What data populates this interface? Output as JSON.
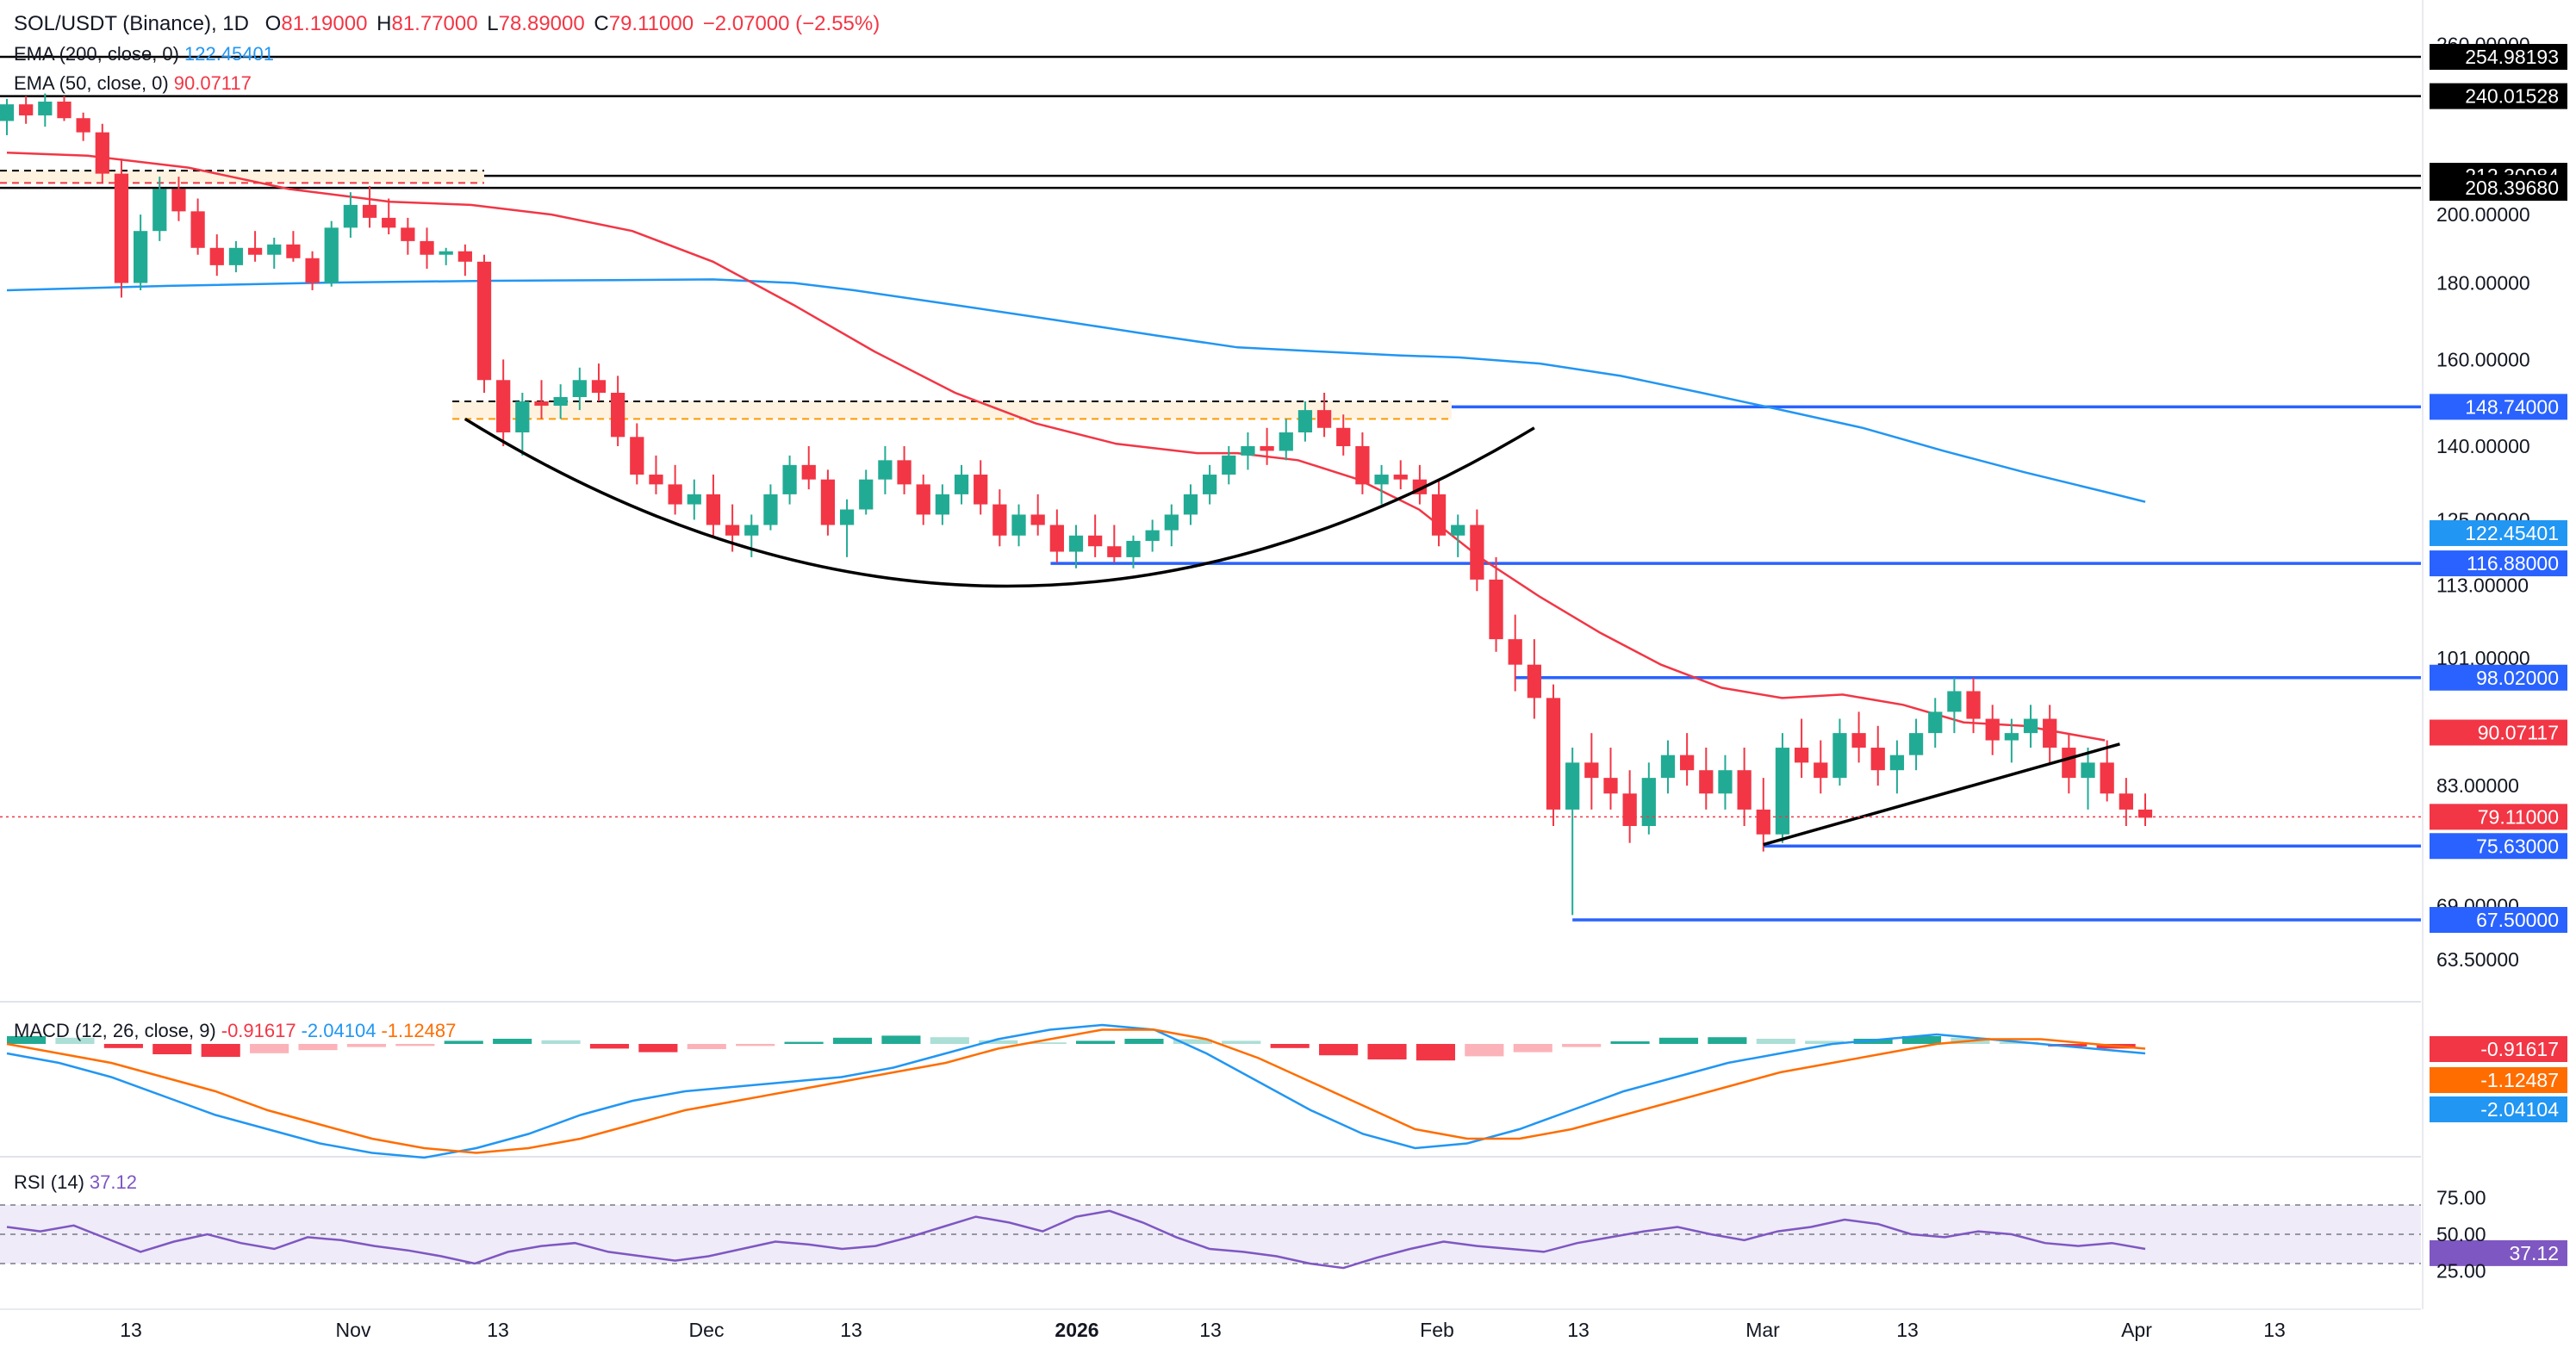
{
  "header": {
    "symbol": "SOL/USDT (Binance), 1D",
    "open_label": "O",
    "open": "81.19000",
    "high_label": "H",
    "high": "81.77000",
    "low_label": "L",
    "low": "78.89000",
    "close_label": "C",
    "close": "79.11000",
    "change": "−2.07000 (−2.55%)"
  },
  "legend": {
    "ema200_label": "EMA (200, close, 0)",
    "ema200_value": "122.45401",
    "ema50_label": "EMA (50, close, 0)",
    "ema50_value": "90.07117",
    "macd_label": "MACD (12, 26, close, 9)",
    "macd_hist": "-0.91617",
    "macd_macd": "-2.04104",
    "macd_signal": "-1.12487",
    "rsi_label": "RSI (14)",
    "rsi_value": "37.12"
  },
  "colors": {
    "up": "#22ab94",
    "down": "#f23645",
    "ema200": "#2196f3",
    "ema50": "#f23645",
    "level": "#2962ff",
    "black_level": "#000000",
    "orange": "#ff9800",
    "hist_pos_strong": "#22ab94",
    "hist_pos_weak": "#acdfd6",
    "hist_neg_strong": "#f23645",
    "hist_neg_weak": "#fbb3b9",
    "rsi_line": "#7e57c2",
    "rsi_band": "#7e57c2"
  },
  "chart_data": {
    "type": "candlestick",
    "price_axis": {
      "ticks": [
        "260.00000",
        "200.00000",
        "180.00000",
        "160.00000",
        "140.00000",
        "125.00000",
        "113.00000",
        "101.00000",
        "83.00000",
        "69.00000",
        "63.50000"
      ],
      "scale": "log"
    },
    "x_axis": {
      "ticks": [
        "13",
        "Nov",
        "13",
        "Dec",
        "13",
        "2026",
        "13",
        "Feb",
        "13",
        "Mar",
        "13",
        "Apr",
        "13"
      ]
    },
    "horizontal_levels": [
      {
        "value": 254.98193,
        "label": "254.98193",
        "color": "black"
      },
      {
        "value": 240.01528,
        "label": "240.01528",
        "color": "black"
      },
      {
        "value": 212.30984,
        "label": "212.30984",
        "color": "black"
      },
      {
        "value": 208.3968,
        "label": "208.39680",
        "color": "black"
      },
      {
        "value": 148.74,
        "label": "148.74000",
        "color": "blue"
      },
      {
        "value": 116.88,
        "label": "116.88000",
        "color": "blue"
      },
      {
        "value": 98.02,
        "label": "98.02000",
        "color": "blue"
      },
      {
        "value": 75.63,
        "label": "75.63000",
        "color": "blue"
      },
      {
        "value": 67.5,
        "label": "67.50000",
        "color": "blue"
      }
    ],
    "price_badges": [
      {
        "value": 122.45401,
        "label": "122.45401",
        "color": "ema200"
      },
      {
        "value": 90.07117,
        "label": "90.07117",
        "color": "ema50"
      },
      {
        "value": 79.11,
        "label": "79.11000",
        "color": "down"
      }
    ],
    "ema200": [
      [
        0,
        178
      ],
      [
        40,
        179.2
      ],
      [
        80,
        180.1
      ],
      [
        120,
        180.6
      ],
      [
        150,
        180.8
      ],
      [
        175,
        181
      ],
      [
        195,
        180
      ],
      [
        210,
        178
      ],
      [
        235,
        174
      ],
      [
        260,
        170
      ],
      [
        285,
        166
      ],
      [
        305,
        163
      ],
      [
        325,
        162
      ],
      [
        345,
        161
      ],
      [
        360,
        160.5
      ],
      [
        380,
        159
      ],
      [
        400,
        156
      ],
      [
        420,
        152
      ],
      [
        440,
        148
      ],
      [
        460,
        144
      ],
      [
        480,
        139
      ],
      [
        500,
        134.5
      ],
      [
        520,
        130.5
      ],
      [
        530,
        128.5
      ]
    ],
    "ema50": [
      [
        0,
        220
      ],
      [
        20,
        219
      ],
      [
        45,
        215
      ],
      [
        70,
        208
      ],
      [
        95,
        204
      ],
      [
        115,
        203
      ],
      [
        135,
        200
      ],
      [
        155,
        195
      ],
      [
        175,
        186
      ],
      [
        195,
        174
      ],
      [
        215,
        162
      ],
      [
        235,
        152
      ],
      [
        255,
        145
      ],
      [
        275,
        140.5
      ],
      [
        295,
        138.5
      ],
      [
        305,
        138.5
      ],
      [
        320,
        137
      ],
      [
        335,
        133
      ],
      [
        350,
        127
      ],
      [
        365,
        118
      ],
      [
        380,
        111
      ],
      [
        395,
        105
      ],
      [
        410,
        100
      ],
      [
        425,
        96.5
      ],
      [
        440,
        95
      ],
      [
        455,
        95.5
      ],
      [
        470,
        94
      ],
      [
        485,
        91.5
      ],
      [
        500,
        91
      ],
      [
        520,
        89
      ]
    ],
    "candles": [
      [
        0,
        231,
        239,
        226,
        237
      ],
      [
        3,
        237,
        240,
        230,
        233
      ],
      [
        6,
        233,
        241,
        229,
        238
      ],
      [
        9,
        238,
        240,
        231,
        232
      ],
      [
        12,
        232,
        234,
        224,
        227
      ],
      [
        15,
        227,
        230,
        210,
        213
      ],
      [
        18,
        213,
        218,
        176,
        180
      ],
      [
        21,
        180,
        200,
        178,
        195
      ],
      [
        24,
        195,
        212,
        192,
        208
      ],
      [
        27,
        208,
        212,
        198,
        201
      ],
      [
        30,
        201,
        205,
        188,
        190
      ],
      [
        33,
        190,
        194,
        182,
        185
      ],
      [
        36,
        185,
        192,
        183,
        190
      ],
      [
        39,
        190,
        195,
        186,
        188
      ],
      [
        42,
        188,
        193,
        184,
        191
      ],
      [
        45,
        191,
        195,
        186,
        187
      ],
      [
        48,
        187,
        189,
        178,
        180
      ],
      [
        51,
        180,
        198,
        179,
        196
      ],
      [
        54,
        196,
        207,
        193,
        203
      ],
      [
        57,
        203,
        209,
        196,
        199
      ],
      [
        60,
        199,
        205,
        194,
        196
      ],
      [
        63,
        196,
        199,
        188,
        192
      ],
      [
        66,
        192,
        196,
        184,
        188
      ],
      [
        69,
        188,
        190,
        185,
        189
      ],
      [
        72,
        189,
        191,
        182,
        186
      ],
      [
        75,
        186,
        188,
        152,
        155
      ],
      [
        78,
        155,
        160,
        140,
        143
      ],
      [
        81,
        143,
        152,
        138,
        150
      ],
      [
        84,
        150,
        155,
        146,
        149
      ],
      [
        87,
        149,
        154,
        146,
        151
      ],
      [
        90,
        151,
        158,
        148,
        155
      ],
      [
        93,
        155,
        159,
        150,
        152
      ],
      [
        96,
        152,
        156,
        140,
        142
      ],
      [
        99,
        142,
        145,
        132,
        134
      ],
      [
        102,
        134,
        138,
        130,
        132
      ],
      [
        105,
        132,
        136,
        126,
        128
      ],
      [
        108,
        128,
        133,
        125,
        130
      ],
      [
        111,
        130,
        134,
        122,
        124
      ],
      [
        114,
        124,
        128,
        119,
        122
      ],
      [
        117,
        122,
        126,
        118,
        124
      ],
      [
        120,
        124,
        132,
        123,
        130
      ],
      [
        123,
        130,
        138,
        128,
        136
      ],
      [
        126,
        136,
        140,
        131,
        133
      ],
      [
        129,
        133,
        135,
        122,
        124
      ],
      [
        132,
        124,
        129,
        118,
        127
      ],
      [
        135,
        127,
        135,
        126,
        133
      ],
      [
        138,
        133,
        140,
        130,
        137
      ],
      [
        141,
        137,
        140,
        130,
        132
      ],
      [
        144,
        132,
        134,
        124,
        126
      ],
      [
        147,
        126,
        132,
        124,
        130
      ],
      [
        150,
        130,
        136,
        128,
        134
      ],
      [
        153,
        134,
        137,
        126,
        128
      ],
      [
        156,
        128,
        131,
        120,
        122
      ],
      [
        159,
        122,
        128,
        120,
        126
      ],
      [
        162,
        126,
        130,
        122,
        124
      ],
      [
        165,
        124,
        127,
        117,
        119
      ],
      [
        168,
        119,
        124,
        116,
        122
      ],
      [
        171,
        122,
        126,
        118,
        120
      ],
      [
        174,
        120,
        124,
        117,
        118
      ],
      [
        177,
        118,
        122,
        116,
        121
      ],
      [
        180,
        121,
        125,
        119,
        123
      ],
      [
        183,
        123,
        128,
        120,
        126
      ],
      [
        186,
        126,
        132,
        124,
        130
      ],
      [
        189,
        130,
        136,
        128,
        134
      ],
      [
        192,
        134,
        140,
        132,
        138
      ],
      [
        195,
        138,
        143,
        135,
        140
      ],
      [
        198,
        140,
        144,
        136,
        139
      ],
      [
        201,
        139,
        146,
        137,
        143
      ],
      [
        204,
        143,
        150,
        141,
        148
      ],
      [
        207,
        148,
        152,
        142,
        144
      ],
      [
        210,
        144,
        147,
        138,
        140
      ],
      [
        213,
        140,
        143,
        130,
        132
      ],
      [
        216,
        132,
        136,
        128,
        134
      ],
      [
        219,
        134,
        137,
        131,
        133
      ],
      [
        222,
        133,
        136,
        128,
        130
      ],
      [
        225,
        130,
        133,
        120,
        122
      ],
      [
        228,
        122,
        126,
        118,
        124
      ],
      [
        231,
        124,
        127,
        112,
        114
      ],
      [
        234,
        114,
        118,
        102,
        104
      ],
      [
        237,
        104,
        108,
        96,
        100
      ],
      [
        240,
        100,
        104,
        92,
        95
      ],
      [
        243,
        95,
        97,
        78,
        80
      ],
      [
        246,
        80,
        88,
        68,
        86
      ],
      [
        249,
        86,
        90,
        80,
        84
      ],
      [
        252,
        84,
        88,
        80,
        82
      ],
      [
        255,
        82,
        85,
        76,
        78
      ],
      [
        258,
        78,
        86,
        77,
        84
      ],
      [
        261,
        84,
        89,
        82,
        87
      ],
      [
        264,
        87,
        90,
        83,
        85
      ],
      [
        267,
        85,
        88,
        80,
        82
      ],
      [
        270,
        82,
        87,
        80,
        85
      ],
      [
        273,
        85,
        88,
        78,
        80
      ],
      [
        276,
        80,
        84,
        75,
        77
      ],
      [
        279,
        77,
        90,
        76,
        88
      ],
      [
        282,
        88,
        92,
        84,
        86
      ],
      [
        285,
        86,
        89,
        82,
        84
      ],
      [
        288,
        84,
        92,
        83,
        90
      ],
      [
        291,
        90,
        93,
        86,
        88
      ],
      [
        294,
        88,
        91,
        83,
        85
      ],
      [
        297,
        85,
        89,
        82,
        87
      ],
      [
        300,
        87,
        92,
        85,
        90
      ],
      [
        303,
        90,
        95,
        88,
        93
      ],
      [
        306,
        93,
        98,
        90,
        96
      ],
      [
        309,
        96,
        98,
        90,
        92
      ],
      [
        312,
        92,
        94,
        87,
        89
      ],
      [
        315,
        89,
        92,
        86,
        90
      ],
      [
        318,
        90,
        94,
        88,
        92
      ],
      [
        321,
        92,
        94,
        86,
        88
      ],
      [
        324,
        88,
        90,
        82,
        84
      ],
      [
        327,
        84,
        88,
        80,
        86
      ],
      [
        330,
        86,
        89,
        81,
        82
      ],
      [
        333,
        82,
        84,
        78,
        80
      ],
      [
        336,
        80,
        82,
        78,
        79
      ]
    ],
    "macd": {
      "axis_ticks": [],
      "hist": [
        1.5,
        1.2,
        -0.8,
        -2.0,
        -2.5,
        -1.8,
        -1.2,
        -0.6,
        -0.4,
        0.6,
        1.0,
        0.7,
        -0.9,
        -1.6,
        -1.0,
        -0.4,
        0.4,
        1.2,
        1.6,
        1.3,
        0.7,
        0.3,
        0.6,
        1.0,
        0.9,
        0.6,
        -0.8,
        -2.2,
        -3.0,
        -3.2,
        -2.4,
        -1.6,
        -0.6,
        0.5,
        1.2,
        1.3,
        1.0,
        0.6,
        1.0,
        1.5,
        1.2,
        0.4,
        -0.5,
        -0.9
      ],
      "macd_line": [
        -2,
        -4,
        -7,
        -11,
        -15,
        -18,
        -21,
        -23,
        -24,
        -22,
        -19,
        -15,
        -12,
        -10,
        -9,
        -8,
        -7,
        -5,
        -2,
        1,
        3,
        4,
        3,
        -2,
        -8,
        -14,
        -19,
        -22,
        -21,
        -18,
        -14,
        -10,
        -7,
        -4,
        -2,
        0,
        1,
        2,
        1,
        0,
        -1,
        -2
      ],
      "signal_line": [
        0,
        -2,
        -4,
        -7,
        -10,
        -14,
        -17,
        -20,
        -22,
        -23,
        -22,
        -20,
        -17,
        -14,
        -12,
        -10,
        -8,
        -6,
        -4,
        -1,
        1,
        3,
        3,
        1,
        -3,
        -8,
        -13,
        -18,
        -20,
        -20,
        -18,
        -15,
        -12,
        -9,
        -6,
        -4,
        -2,
        0,
        1,
        1,
        0,
        -1
      ]
    },
    "rsi": {
      "axis_ticks": [
        "75.00",
        "50.00",
        "25.00"
      ],
      "band": [
        30,
        70
      ],
      "values": [
        55,
        52,
        56,
        47,
        38,
        45,
        50,
        44,
        40,
        48,
        46,
        42,
        39,
        35,
        30,
        38,
        42,
        44,
        38,
        35,
        32,
        35,
        40,
        45,
        43,
        40,
        42,
        48,
        55,
        62,
        58,
        52,
        62,
        66,
        58,
        48,
        40,
        38,
        35,
        30,
        27,
        34,
        40,
        45,
        42,
        40,
        38,
        44,
        48,
        52,
        55,
        50,
        46,
        52,
        55,
        60,
        57,
        50,
        48,
        52,
        50,
        44,
        42,
        44,
        40
      ]
    }
  },
  "annotations": {
    "rounded_top_arc": true,
    "ascending_trendline": true,
    "orange_dashed_zone_label": ""
  }
}
